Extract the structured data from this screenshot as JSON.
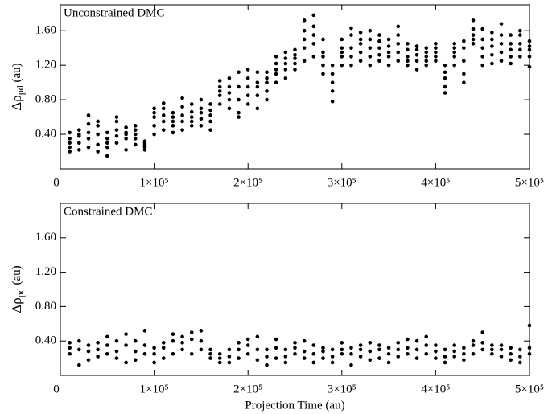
{
  "chart_data": [
    {
      "type": "scatter",
      "title": "Unconstrained DMC",
      "ylabel": "Δρ",
      "ylabel_sub": "pd",
      "ylabel_unit": " (au)",
      "xlim": [
        0,
        500000
      ],
      "ylim": [
        0,
        1.9
      ],
      "xticks": [
        0,
        {
          "value": 100000,
          "label": "1×10⁵"
        },
        {
          "value": 200000,
          "label": "2×10⁵"
        },
        {
          "value": 300000,
          "label": "3×10⁵"
        },
        {
          "value": 400000,
          "label": "4×10⁵"
        },
        {
          "value": 500000,
          "label": "5×10⁵"
        }
      ],
      "yticks": [
        {
          "value": 0.4,
          "label": "0.40"
        },
        {
          "value": 0.8,
          "label": "0.80"
        },
        {
          "value": 1.2,
          "label": "1.20"
        },
        {
          "value": 1.6,
          "label": "1.60"
        }
      ],
      "color": "#000000",
      "x": [
        10000,
        20000,
        30000,
        40000,
        50000,
        60000,
        70000,
        80000,
        90000,
        100000,
        110000,
        120000,
        130000,
        140000,
        150000,
        160000,
        170000,
        180000,
        190000,
        200000,
        210000,
        220000,
        230000,
        240000,
        250000,
        260000,
        270000,
        280000,
        290000,
        300000,
        310000,
        320000,
        330000,
        340000,
        350000,
        360000,
        370000,
        380000,
        390000,
        400000,
        410000,
        420000,
        430000,
        440000,
        450000,
        460000,
        470000,
        480000,
        490000,
        500000
      ],
      "values": [
        [
          0.2,
          0.3,
          0.35,
          0.42,
          0.25
        ],
        [
          0.22,
          0.3,
          0.4,
          0.45,
          0.38
        ],
        [
          0.25,
          0.35,
          0.42,
          0.52,
          0.62
        ],
        [
          0.2,
          0.28,
          0.4,
          0.5,
          0.55
        ],
        [
          0.15,
          0.25,
          0.3,
          0.35,
          0.42
        ],
        [
          0.3,
          0.38,
          0.45,
          0.55,
          0.6
        ],
        [
          0.22,
          0.35,
          0.4,
          0.42,
          0.48
        ],
        [
          0.28,
          0.35,
          0.4,
          0.45,
          0.5
        ],
        [
          0.22,
          0.25,
          0.28,
          0.3,
          0.32
        ],
        [
          0.4,
          0.5,
          0.6,
          0.65,
          0.7
        ],
        [
          0.45,
          0.55,
          0.62,
          0.7,
          0.76
        ],
        [
          0.42,
          0.5,
          0.55,
          0.6,
          0.65
        ],
        [
          0.45,
          0.55,
          0.62,
          0.72,
          0.82
        ],
        [
          0.5,
          0.55,
          0.6,
          0.66,
          0.75
        ],
        [
          0.5,
          0.58,
          0.65,
          0.7,
          0.8
        ],
        [
          0.45,
          0.55,
          0.62,
          0.68,
          0.75
        ],
        [
          0.75,
          0.85,
          0.9,
          0.95,
          1.02
        ],
        [
          0.7,
          0.8,
          0.88,
          0.95,
          1.05
        ],
        [
          0.6,
          0.65,
          0.8,
          0.95,
          1.12
        ],
        [
          0.75,
          0.85,
          0.95,
          1.05,
          1.15
        ],
        [
          0.7,
          0.85,
          0.95,
          1.0,
          1.12
        ],
        [
          0.8,
          0.9,
          1.0,
          1.05,
          1.12
        ],
        [
          1.0,
          1.1,
          1.15,
          1.22,
          1.3
        ],
        [
          1.05,
          1.15,
          1.22,
          1.28,
          1.35
        ],
        [
          1.15,
          1.22,
          1.28,
          1.32,
          1.38
        ],
        [
          1.25,
          1.4,
          1.5,
          1.6,
          1.72
        ],
        [
          1.3,
          1.45,
          1.55,
          1.65,
          1.78
        ],
        [
          1.1,
          1.2,
          1.3,
          1.35,
          1.5
        ],
        [
          0.78,
          0.9,
          1.0,
          1.1,
          1.2
        ],
        [
          1.2,
          1.3,
          1.35,
          1.4,
          1.5
        ],
        [
          1.2,
          1.3,
          1.4,
          1.55,
          1.63
        ],
        [
          1.25,
          1.35,
          1.45,
          1.5,
          1.58
        ],
        [
          1.2,
          1.3,
          1.4,
          1.5,
          1.6
        ],
        [
          1.25,
          1.32,
          1.4,
          1.48,
          1.55
        ],
        [
          1.2,
          1.3,
          1.35,
          1.42,
          1.5
        ],
        [
          1.25,
          1.35,
          1.45,
          1.55,
          1.65
        ],
        [
          1.2,
          1.25,
          1.3,
          1.38,
          1.45
        ],
        [
          1.15,
          1.25,
          1.32,
          1.38,
          1.42
        ],
        [
          1.2,
          1.25,
          1.3,
          1.35,
          1.4
        ],
        [
          1.25,
          1.3,
          1.35,
          1.4,
          1.45
        ],
        [
          0.88,
          0.95,
          1.05,
          1.12,
          1.2
        ],
        [
          1.2,
          1.3,
          1.35,
          1.4,
          1.45
        ],
        [
          1.0,
          1.1,
          1.25,
          1.4,
          1.48
        ],
        [
          1.45,
          1.5,
          1.55,
          1.62,
          1.72
        ],
        [
          1.2,
          1.3,
          1.4,
          1.5,
          1.62
        ],
        [
          1.22,
          1.32,
          1.42,
          1.5,
          1.58
        ],
        [
          1.25,
          1.35,
          1.45,
          1.55,
          1.68
        ],
        [
          1.22,
          1.3,
          1.38,
          1.45,
          1.55
        ],
        [
          1.3,
          1.38,
          1.45,
          1.55,
          1.6
        ],
        [
          1.18,
          1.3,
          1.38,
          1.42,
          1.48
        ]
      ]
    },
    {
      "type": "scatter",
      "title": "Constrained DMC",
      "ylabel": "Δρ",
      "ylabel_sub": "pd",
      "ylabel_unit": " (au)",
      "xlabel": "Projection Time (au)",
      "xlim": [
        0,
        500000
      ],
      "ylim": [
        0,
        2.0
      ],
      "xticks": [
        0,
        {
          "value": 100000,
          "label": "1×10⁵"
        },
        {
          "value": 200000,
          "label": "2×10⁵"
        },
        {
          "value": 300000,
          "label": "3×10⁵"
        },
        {
          "value": 400000,
          "label": "4×10⁵"
        },
        {
          "value": 500000,
          "label": "5×10⁵"
        }
      ],
      "yticks": [
        {
          "value": 0.4,
          "label": "0.40"
        },
        {
          "value": 0.8,
          "label": "0.80"
        },
        {
          "value": 1.2,
          "label": "1.20"
        },
        {
          "value": 1.6,
          "label": "1.60"
        }
      ],
      "color": "#000000",
      "x": [
        10000,
        20000,
        30000,
        40000,
        50000,
        60000,
        70000,
        80000,
        90000,
        100000,
        110000,
        120000,
        130000,
        140000,
        150000,
        160000,
        170000,
        180000,
        190000,
        200000,
        210000,
        220000,
        230000,
        240000,
        250000,
        260000,
        270000,
        280000,
        290000,
        300000,
        310000,
        320000,
        330000,
        340000,
        350000,
        360000,
        370000,
        380000,
        390000,
        400000,
        410000,
        420000,
        430000,
        440000,
        450000,
        460000,
        470000,
        480000,
        490000,
        500000
      ],
      "values": [
        [
          0.25,
          0.32,
          0.38
        ],
        [
          0.12,
          0.3,
          0.4
        ],
        [
          0.18,
          0.28,
          0.35
        ],
        [
          0.22,
          0.3,
          0.38
        ],
        [
          0.25,
          0.35,
          0.45
        ],
        [
          0.2,
          0.28,
          0.4
        ],
        [
          0.15,
          0.35,
          0.48
        ],
        [
          0.18,
          0.28,
          0.4
        ],
        [
          0.25,
          0.35,
          0.52
        ],
        [
          0.15,
          0.25,
          0.32
        ],
        [
          0.2,
          0.32,
          0.38
        ],
        [
          0.25,
          0.4,
          0.48
        ],
        [
          0.3,
          0.38,
          0.45
        ],
        [
          0.25,
          0.42,
          0.5
        ],
        [
          0.3,
          0.4,
          0.52
        ],
        [
          0.2,
          0.25,
          0.3
        ],
        [
          0.15,
          0.2,
          0.25
        ],
        [
          0.15,
          0.22,
          0.3
        ],
        [
          0.2,
          0.3,
          0.38
        ],
        [
          0.25,
          0.35,
          0.42
        ],
        [
          0.18,
          0.3,
          0.45
        ],
        [
          0.12,
          0.22,
          0.3
        ],
        [
          0.2,
          0.32,
          0.42
        ],
        [
          0.15,
          0.22,
          0.3
        ],
        [
          0.25,
          0.32,
          0.38
        ],
        [
          0.2,
          0.28,
          0.4
        ],
        [
          0.15,
          0.25,
          0.35
        ],
        [
          0.2,
          0.28,
          0.32
        ],
        [
          0.15,
          0.22,
          0.3
        ],
        [
          0.25,
          0.3,
          0.38
        ],
        [
          0.12,
          0.25,
          0.32
        ],
        [
          0.22,
          0.3,
          0.35
        ],
        [
          0.18,
          0.28,
          0.38
        ],
        [
          0.2,
          0.3,
          0.35
        ],
        [
          0.15,
          0.25,
          0.32
        ],
        [
          0.22,
          0.3,
          0.38
        ],
        [
          0.25,
          0.32,
          0.42
        ],
        [
          0.2,
          0.3,
          0.4
        ],
        [
          0.25,
          0.35,
          0.45
        ],
        [
          0.2,
          0.28,
          0.35
        ],
        [
          0.15,
          0.22,
          0.3
        ],
        [
          0.22,
          0.28,
          0.35
        ],
        [
          0.18,
          0.25,
          0.32
        ],
        [
          0.25,
          0.35,
          0.4
        ],
        [
          0.3,
          0.38,
          0.5
        ],
        [
          0.25,
          0.3,
          0.35
        ],
        [
          0.22,
          0.3,
          0.35
        ],
        [
          0.18,
          0.25,
          0.32
        ],
        [
          0.15,
          0.22,
          0.3
        ],
        [
          0.25,
          0.32,
          0.58
        ]
      ]
    }
  ]
}
